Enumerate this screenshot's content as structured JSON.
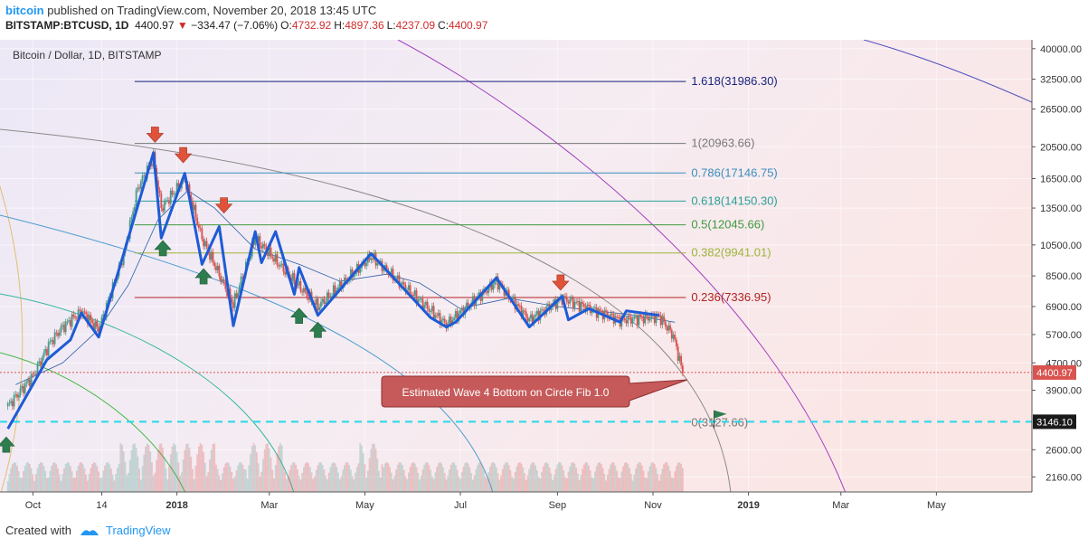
{
  "header": {
    "user": "bitcoin",
    "published_text": "published on TradingView.com, November 20, 2018 13:45 UTC",
    "symbol": "BITSTAMP:BTCUSD, 1D",
    "last": "4400.97",
    "change": "−334.47 (−7.06%)",
    "o_label": "O:",
    "o_value": "4732.92",
    "h_label": "H:",
    "h_value": "4897.36",
    "l_label": "L:",
    "l_value": "4237.09",
    "c_label": "C:",
    "c_value": "4400.97"
  },
  "footer": {
    "created_with": "Created with",
    "brand": "TradingView"
  },
  "colors": {
    "up": "#4a9a8b",
    "down": "#d9534f",
    "wave": "#1e5bd6",
    "dashed": "#25d8e8",
    "callout": "#c65a5a",
    "arrow_up": "#2e7d4f",
    "arrow_down": "#e0533a"
  },
  "chart_data": {
    "type": "candlestick",
    "title": "Bitcoin / Dollar, 1D, BITSTAMP",
    "y_scale": "log",
    "ylim": [
      1950,
      42500
    ],
    "y_ticks": [
      "40000.00",
      "32500.00",
      "26500.00",
      "20500.00",
      "16500.00",
      "13500.00",
      "10500.00",
      "8500.00",
      "6900.00",
      "5700.00",
      "4700.00",
      "3900.00",
      "2600.00",
      "2160.00"
    ],
    "x_ticks": [
      "Oct",
      "14",
      "2018",
      "Mar",
      "May",
      "Jul",
      "Sep",
      "Nov",
      "2019",
      "Mar",
      "May"
    ],
    "price_label": "4400.97",
    "dashed_level_label": "3146.10",
    "dashed_level": 3146.1,
    "fib_levels": [
      {
        "label": "1.618(31986.30)",
        "value": 31986.3,
        "color": "#1a237e"
      },
      {
        "label": "1(20963.66)",
        "value": 20963.66,
        "color": "#777777"
      },
      {
        "label": "0.786(17146.75)",
        "value": 17146.75,
        "color": "#3a8fbf"
      },
      {
        "label": "0.618(14150.30)",
        "value": 14150.3,
        "color": "#2aa198"
      },
      {
        "label": "0.5(12045.66)",
        "value": 12045.66,
        "color": "#3f9a3f"
      },
      {
        "label": "0.382(9941.01)",
        "value": 9941.01,
        "color": "#9cb53a"
      },
      {
        "label": "0.236(7336.95)",
        "value": 7336.95,
        "color": "#b22222"
      },
      {
        "label": "0(3127.66)",
        "value": 3127.66,
        "color": "#777777"
      }
    ],
    "annotation": "Estimated Wave 4 Bottom on Circle Fib 1.0",
    "wave_path": [
      {
        "date": "2017-09-15",
        "price": 3000
      },
      {
        "date": "2017-10-10",
        "price": 4800
      },
      {
        "date": "2017-10-25",
        "price": 5500
      },
      {
        "date": "2017-11-01",
        "price": 6600
      },
      {
        "date": "2017-11-12",
        "price": 5600
      },
      {
        "date": "2017-11-28",
        "price": 9900
      },
      {
        "date": "2017-12-17",
        "price": 19700
      },
      {
        "date": "2017-12-22",
        "price": 11000
      },
      {
        "date": "2018-01-06",
        "price": 17100
      },
      {
        "date": "2018-01-17",
        "price": 9200
      },
      {
        "date": "2018-01-28",
        "price": 11900
      },
      {
        "date": "2018-02-06",
        "price": 6050
      },
      {
        "date": "2018-02-20",
        "price": 11500
      },
      {
        "date": "2018-02-24",
        "price": 9300
      },
      {
        "date": "2018-03-05",
        "price": 11500
      },
      {
        "date": "2018-03-17",
        "price": 7500
      },
      {
        "date": "2018-03-20",
        "price": 9000
      },
      {
        "date": "2018-04-01",
        "price": 6500
      },
      {
        "date": "2018-05-05",
        "price": 9900
      },
      {
        "date": "2018-06-12",
        "price": 6400
      },
      {
        "date": "2018-06-22",
        "price": 6000
      },
      {
        "date": "2018-06-28",
        "price": 6200
      },
      {
        "date": "2018-07-24",
        "price": 8400
      },
      {
        "date": "2018-08-14",
        "price": 6000
      },
      {
        "date": "2018-09-04",
        "price": 7400
      },
      {
        "date": "2018-09-08",
        "price": 6300
      },
      {
        "date": "2018-09-21",
        "price": 6800
      },
      {
        "date": "2018-10-11",
        "price": 6200
      },
      {
        "date": "2018-10-15",
        "price": 6700
      },
      {
        "date": "2018-11-05",
        "price": 6500
      }
    ],
    "price_series": [
      {
        "date": "2017-09-15",
        "close": 3500
      },
      {
        "date": "2017-10-01",
        "close": 4300
      },
      {
        "date": "2017-10-12",
        "close": 5400
      },
      {
        "date": "2017-10-20",
        "close": 6000
      },
      {
        "date": "2017-11-01",
        "close": 6700
      },
      {
        "date": "2017-11-12",
        "close": 5900
      },
      {
        "date": "2017-11-28",
        "close": 9800
      },
      {
        "date": "2017-12-07",
        "close": 15500
      },
      {
        "date": "2017-12-17",
        "close": 19000
      },
      {
        "date": "2017-12-22",
        "close": 13500
      },
      {
        "date": "2018-01-06",
        "close": 16500
      },
      {
        "date": "2018-01-17",
        "close": 11000
      },
      {
        "date": "2018-02-06",
        "close": 7000
      },
      {
        "date": "2018-02-20",
        "close": 11000
      },
      {
        "date": "2018-03-17",
        "close": 8200
      },
      {
        "date": "2018-04-01",
        "close": 6900
      },
      {
        "date": "2018-05-05",
        "close": 9700
      },
      {
        "date": "2018-06-22",
        "close": 6100
      },
      {
        "date": "2018-07-24",
        "close": 8200
      },
      {
        "date": "2018-08-14",
        "close": 6300
      },
      {
        "date": "2018-09-04",
        "close": 7300
      },
      {
        "date": "2018-10-11",
        "close": 6300
      },
      {
        "date": "2018-11-05",
        "close": 6450
      },
      {
        "date": "2018-11-14",
        "close": 5650
      },
      {
        "date": "2018-11-20",
        "close": 4400.97
      }
    ],
    "ma_series": [
      {
        "date": "2017-09-20",
        "value": 4050
      },
      {
        "date": "2017-10-20",
        "value": 4700
      },
      {
        "date": "2017-11-12",
        "value": 5900
      },
      {
        "date": "2017-12-01",
        "value": 8000
      },
      {
        "date": "2017-12-20",
        "value": 12500
      },
      {
        "date": "2018-01-08",
        "value": 15200
      },
      {
        "date": "2018-01-25",
        "value": 13500
      },
      {
        "date": "2018-02-20",
        "value": 10200
      },
      {
        "date": "2018-03-20",
        "value": 9200
      },
      {
        "date": "2018-04-15",
        "value": 8200
      },
      {
        "date": "2018-05-15",
        "value": 8600
      },
      {
        "date": "2018-06-05",
        "value": 8100
      },
      {
        "date": "2018-07-01",
        "value": 6800
      },
      {
        "date": "2018-08-01",
        "value": 7300
      },
      {
        "date": "2018-09-01",
        "value": 6900
      },
      {
        "date": "2018-10-15",
        "value": 6550
      },
      {
        "date": "2018-11-15",
        "value": 6200
      }
    ],
    "down_arrows": [
      {
        "date": "2017-12-18",
        "price": 22200
      },
      {
        "date": "2018-01-05",
        "price": 19300
      },
      {
        "date": "2018-01-31",
        "price": 13700
      },
      {
        "date": "2018-09-03",
        "price": 8100
      }
    ],
    "up_arrows": [
      {
        "date": "2017-12-23",
        "price": 10300
      },
      {
        "date": "2018-01-18",
        "price": 8500
      },
      {
        "date": "2018-03-20",
        "price": 6500
      },
      {
        "date": "2018-04-01",
        "price": 5900
      },
      {
        "date": "2017-09-14",
        "price": 2700
      }
    ],
    "flag_date": "2018-12-10",
    "flag_price": 3400
  }
}
